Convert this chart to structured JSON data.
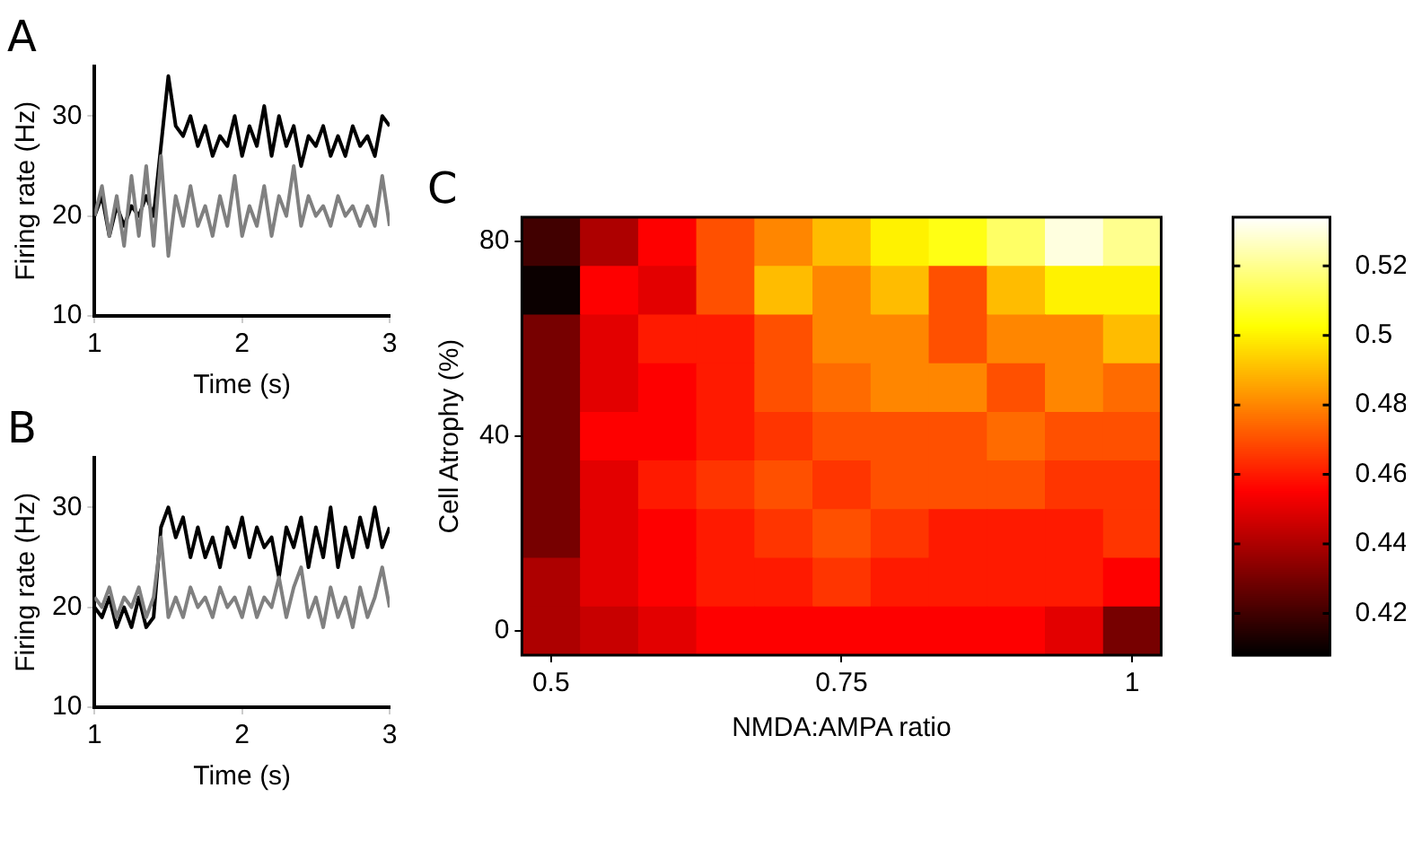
{
  "chart_data": [
    {
      "type": "line",
      "title": "A",
      "xlabel": "Time (s)",
      "ylabel": "Firing rate (Hz)",
      "xlim": [
        1,
        3
      ],
      "ylim": [
        10,
        35
      ],
      "xticks": [
        1,
        2,
        3
      ],
      "yticks": [
        10,
        20,
        30
      ],
      "x": [
        1,
        1.05,
        1.1,
        1.15,
        1.2,
        1.25,
        1.3,
        1.35,
        1.4,
        1.45,
        1.5,
        1.55,
        1.6,
        1.65,
        1.7,
        1.75,
        1.8,
        1.85,
        1.9,
        1.95,
        2,
        2.05,
        2.1,
        2.15,
        2.2,
        2.25,
        2.3,
        2.35,
        2.4,
        2.45,
        2.5,
        2.55,
        2.6,
        2.65,
        2.7,
        2.75,
        2.8,
        2.85,
        2.9,
        2.95,
        3
      ],
      "series": [
        {
          "color": "#808080",
          "values": [
            20,
            23,
            18,
            22,
            17,
            24,
            18,
            25,
            17,
            26,
            16,
            22,
            19,
            23,
            19,
            21,
            18,
            22,
            19,
            24,
            18,
            21,
            19,
            23,
            18,
            22,
            20,
            25,
            19,
            22,
            20,
            21,
            19,
            22,
            20,
            21,
            19,
            21,
            19,
            24,
            19
          ]
        },
        {
          "color": "#000000",
          "values": [
            20,
            22,
            18,
            21,
            19,
            21,
            20,
            22,
            20,
            27,
            34,
            29,
            28,
            30,
            27,
            29,
            26,
            28,
            27,
            30,
            26,
            29,
            27,
            31,
            26,
            30,
            27,
            29,
            25,
            28,
            27,
            29,
            26,
            28,
            26,
            29,
            27,
            28,
            26,
            30,
            29
          ]
        }
      ]
    },
    {
      "type": "line",
      "title": "B",
      "xlabel": "Time (s)",
      "ylabel": "Firing rate (Hz)",
      "xlim": [
        1,
        3
      ],
      "ylim": [
        10,
        35
      ],
      "xticks": [
        1,
        2,
        3
      ],
      "yticks": [
        10,
        20,
        30
      ],
      "x": [
        1,
        1.05,
        1.1,
        1.15,
        1.2,
        1.25,
        1.3,
        1.35,
        1.4,
        1.45,
        1.5,
        1.55,
        1.6,
        1.65,
        1.7,
        1.75,
        1.8,
        1.85,
        1.9,
        1.95,
        2,
        2.05,
        2.1,
        2.15,
        2.2,
        2.25,
        2.3,
        2.35,
        2.4,
        2.45,
        2.5,
        2.55,
        2.6,
        2.65,
        2.7,
        2.75,
        2.8,
        2.85,
        2.9,
        2.95,
        3
      ],
      "series": [
        {
          "color": "#808080",
          "values": [
            21,
            20,
            22,
            19,
            21,
            20,
            22,
            19,
            21,
            27,
            19,
            21,
            19,
            22,
            20,
            21,
            19,
            22,
            20,
            21,
            19,
            22,
            19,
            21,
            20,
            23,
            19,
            22,
            24,
            19,
            21,
            18,
            22,
            19,
            21,
            18,
            22,
            19,
            21,
            24,
            20
          ]
        },
        {
          "color": "#000000",
          "values": [
            20,
            19,
            21,
            18,
            20,
            18,
            21,
            18,
            19,
            28,
            30,
            27,
            29,
            25,
            28,
            25,
            27,
            24,
            28,
            26,
            29,
            25,
            28,
            26,
            27,
            23,
            28,
            26,
            29,
            24,
            28,
            25,
            30,
            24,
            28,
            25,
            29,
            26,
            30,
            26,
            28
          ]
        }
      ]
    },
    {
      "type": "heatmap",
      "title": "C",
      "xlabel": "NMDA:AMPA ratio",
      "ylabel": "Cell Atrophy (%)",
      "categories": [
        "0.5",
        null,
        null,
        null,
        null,
        "0.75",
        null,
        null,
        null,
        null,
        "1"
      ],
      "y_categories": [
        "80",
        null,
        null,
        null,
        "40",
        null,
        null,
        null,
        "0"
      ],
      "cells": [
        [
          0.42,
          0.44,
          0.455,
          0.47,
          0.48,
          0.49,
          0.5,
          0.505,
          0.515,
          0.53,
          0.52
        ],
        [
          0.41,
          0.455,
          0.45,
          0.47,
          0.49,
          0.48,
          0.49,
          0.47,
          0.49,
          0.5,
          0.5
        ],
        [
          0.43,
          0.45,
          0.46,
          0.46,
          0.47,
          0.48,
          0.48,
          0.47,
          0.48,
          0.48,
          0.49
        ],
        [
          0.43,
          0.45,
          0.455,
          0.46,
          0.47,
          0.475,
          0.48,
          0.48,
          0.47,
          0.48,
          0.475
        ],
        [
          0.43,
          0.455,
          0.455,
          0.46,
          0.465,
          0.47,
          0.47,
          0.47,
          0.475,
          0.47,
          0.47
        ],
        [
          0.43,
          0.45,
          0.46,
          0.465,
          0.47,
          0.465,
          0.47,
          0.47,
          0.47,
          0.465,
          0.465
        ],
        [
          0.43,
          0.45,
          0.455,
          0.46,
          0.465,
          0.47,
          0.465,
          0.46,
          0.46,
          0.46,
          0.465
        ],
        [
          0.44,
          0.45,
          0.455,
          0.46,
          0.46,
          0.465,
          0.46,
          0.46,
          0.46,
          0.46,
          0.455
        ],
        [
          0.44,
          0.445,
          0.45,
          0.455,
          0.455,
          0.455,
          0.455,
          0.455,
          0.455,
          0.45,
          0.43
        ]
      ],
      "clim": [
        0.408,
        0.534
      ],
      "cticks": [
        0.42,
        0.44,
        0.46,
        0.48,
        0.5,
        0.52
      ]
    }
  ]
}
